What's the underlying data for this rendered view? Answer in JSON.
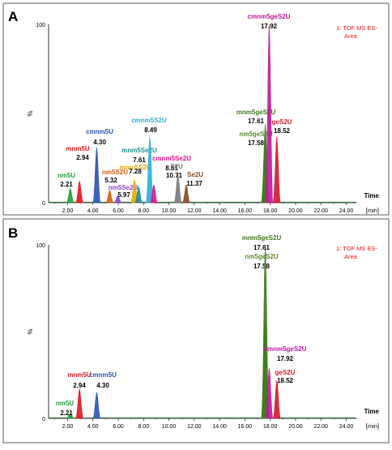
{
  "chart_data": [
    {
      "type": "line",
      "panel_letter": "A",
      "legend_text": [
        "1: TOF MS ES-",
        "Area"
      ],
      "y_label": "%",
      "y_ticks": [
        "100",
        "0"
      ],
      "x_label": [
        "Time",
        "[min]"
      ],
      "x_ticks": [
        "2.00",
        "4.00",
        "6.00",
        "8.00",
        "10.00",
        "12.00",
        "14.00",
        "16.00",
        "18.00",
        "20.00",
        "22.00",
        "24.00"
      ],
      "xlim": [
        0.5,
        24.8
      ],
      "ylim": [
        0,
        100
      ],
      "peaks": [
        {
          "name": "nm5U",
          "time_label": "2.21",
          "rt": 2.21,
          "height": 8,
          "color": "#1e9e3a"
        },
        {
          "name": "mnm5U",
          "time_label": "2.94",
          "rt": 2.94,
          "height": 12,
          "color": "#e0141e"
        },
        {
          "name": "cmnm5U",
          "time_label": "4.30",
          "rt": 4.3,
          "height": 31,
          "color": "#2a52b3"
        },
        {
          "name": "nm5S2U",
          "time_label": "5.32",
          "rt": 5.32,
          "height": 7,
          "color": "#d85c14"
        },
        {
          "name": "nm5Se2U",
          "time_label": "5.97",
          "rt": 5.97,
          "height": 4,
          "color": "#8a43c6"
        },
        {
          "name": "mnm5S2U",
          "time_label": "7.28",
          "rt": 7.28,
          "height": 13,
          "color": "#e8a600"
        },
        {
          "name": "mnm5Se2U",
          "time_label": "7.61",
          "rt": 7.61,
          "height": 9,
          "color": "#1a8f8f"
        },
        {
          "name": "cmnm5S2U",
          "time_label": "8.49",
          "rt": 8.49,
          "height": 37,
          "color": "#2aaee0"
        },
        {
          "name": "cmnm5Se2U",
          "time_label": "8.81",
          "rt": 8.81,
          "height": 10,
          "color": "#e0148a"
        },
        {
          "name": "S2U",
          "time_label": "10.71",
          "rt": 10.71,
          "height": 16,
          "color": "#7a7a7a"
        },
        {
          "name": "Se2U",
          "time_label": "11.37",
          "rt": 11.37,
          "height": 10,
          "color": "#8a4b1e"
        },
        {
          "name": "nm5geS2U",
          "time_label": "17.58",
          "rt": 17.58,
          "height": 34,
          "color": "#5a8a2a"
        },
        {
          "name": "mnm5geS2U",
          "time_label": "17.61",
          "rt": 17.61,
          "height": 44,
          "color": "#3d7a1a"
        },
        {
          "name": "cmnm5geS2U",
          "time_label": "17.92",
          "rt": 17.92,
          "height": 100,
          "color": "#c0159a"
        },
        {
          "name": "geS2U",
          "time_label": "18.52",
          "rt": 18.52,
          "height": 37,
          "color": "#d01a2a"
        }
      ]
    },
    {
      "type": "line",
      "panel_letter": "B",
      "legend_text": [
        "1: TOF MS ES-",
        "Area"
      ],
      "y_label": "%",
      "y_ticks": [
        "100",
        "0"
      ],
      "x_label": [
        "Time",
        "[min]"
      ],
      "x_ticks": [
        "2.00",
        "4.00",
        "6.00",
        "8.00",
        "10.00",
        "12.00",
        "14.00",
        "16.00",
        "18.00",
        "20.00",
        "22.00",
        "24.00"
      ],
      "xlim": [
        0.5,
        24.8
      ],
      "ylim": [
        0,
        100
      ],
      "peaks": [
        {
          "name": "nm5U",
          "time_label": "2.21",
          "rt": 2.21,
          "height": 3,
          "color": "#1e9e3a"
        },
        {
          "name": "mnm5U",
          "time_label": "2.94",
          "rt": 2.94,
          "height": 17,
          "color": "#e0141e"
        },
        {
          "name": "cmnm5U",
          "time_label": "4.30",
          "rt": 4.3,
          "height": 15,
          "color": "#2a52b3"
        },
        {
          "name": "nm5geS2U",
          "time_label": "17.58",
          "rt": 17.58,
          "height": 57,
          "color": "#5a8a2a"
        },
        {
          "name": "mnm5geS2U",
          "time_label": "17.61",
          "rt": 17.61,
          "height": 100,
          "color": "#3d7a1a"
        },
        {
          "name": "cmnm5geS2U",
          "time_label": "17.92",
          "rt": 17.92,
          "height": 29,
          "color": "#c0159a"
        },
        {
          "name": "geS2U",
          "time_label": "18.52",
          "rt": 18.52,
          "height": 22,
          "color": "#d01a2a"
        }
      ]
    }
  ]
}
